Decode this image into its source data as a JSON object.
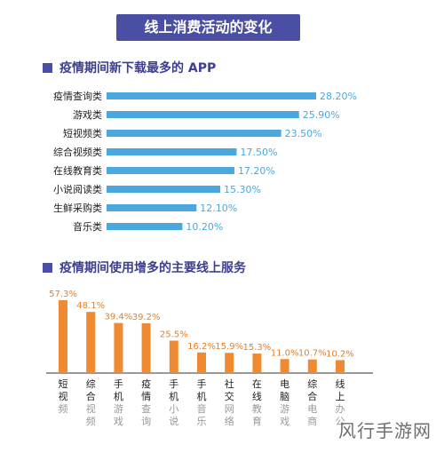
{
  "banner": "线上消费活动的变化",
  "watermark": "风行手游网",
  "colors": {
    "accent": "#4a4fa3",
    "bar_blue": "#4aa8df",
    "bar_orange": "#ef8a33",
    "label_orange": "#e0802e"
  },
  "chart_data": [
    {
      "type": "bar",
      "orientation": "horizontal",
      "title": "疫情期间新下载最多的 APP",
      "categories": [
        "疫情查询类",
        "游戏类",
        "短视频类",
        "综合视频类",
        "在线教育类",
        "小说阅读类",
        "生鲜采购类",
        "音乐类"
      ],
      "values": [
        28.2,
        25.9,
        23.5,
        17.5,
        17.2,
        15.3,
        12.1,
        10.2
      ],
      "value_labels": [
        "28.20%",
        "25.90%",
        "23.50%",
        "17.50%",
        "17.20%",
        "15.30%",
        "12.10%",
        "10.20%"
      ],
      "xlim": [
        0,
        28.2
      ]
    },
    {
      "type": "bar",
      "orientation": "vertical",
      "title": "疫情期间使用增多的主要线上服务",
      "categories": [
        "短视频",
        "综合视频",
        "手机游戏",
        "疫情查询",
        "手机小说",
        "手机音乐",
        "社交网络",
        "在线教育",
        "电脑游戏",
        "综合电商",
        "线上办公"
      ],
      "values": [
        57.3,
        48.1,
        39.4,
        39.2,
        25.5,
        16.2,
        15.9,
        15.3,
        11.0,
        10.7,
        10.2
      ],
      "value_labels": [
        "57.3%",
        "48.1%",
        "39.4%",
        "39.2%",
        "25.5%",
        "16.2%",
        "15.9%",
        "15.3%",
        "11.0%",
        "10.7%",
        "10.2%"
      ],
      "ylim": [
        0,
        57.3
      ]
    }
  ]
}
